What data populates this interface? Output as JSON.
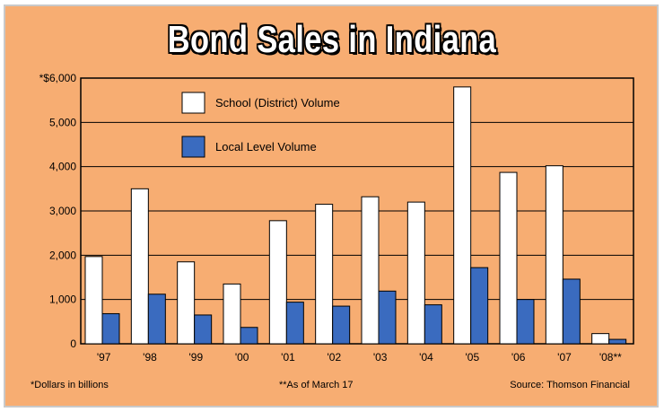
{
  "chart_data": {
    "type": "bar",
    "title": "Bond Sales in Indiana",
    "categories": [
      "'97",
      "'98",
      "'99",
      "'00",
      "'01",
      "'02",
      "'03",
      "'04",
      "'05",
      "'06",
      "'07",
      "'08**"
    ],
    "series": [
      {
        "name": "School (District) Volume",
        "color": "#ffffff",
        "values": [
          1970,
          3500,
          1850,
          1350,
          2780,
          3150,
          3320,
          3200,
          5800,
          3870,
          4020,
          230
        ]
      },
      {
        "name": "Local Level  Volume",
        "color": "#3a6bbf",
        "values": [
          680,
          1120,
          650,
          370,
          940,
          850,
          1190,
          880,
          1720,
          1000,
          1460,
          100
        ]
      }
    ],
    "y_ticks": [
      "0",
      "1,000",
      "2,000",
      "3,000",
      "4,000",
      "5,000",
      "*$6,000"
    ],
    "ylim": [
      0,
      6000
    ],
    "xlabel": "",
    "ylabel": "",
    "legend_position": "top-left"
  },
  "footnotes": {
    "dollars": "*Dollars in billions",
    "as_of": "**As of March 17",
    "source": "Source: Thomson Financial"
  }
}
